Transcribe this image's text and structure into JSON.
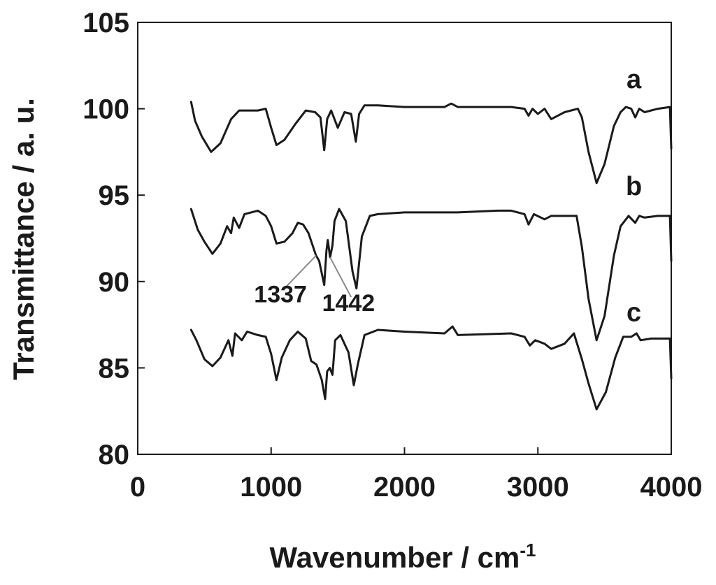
{
  "chart_data": {
    "type": "line",
    "xlabel": "Wavenumber / cm",
    "xlabel_sup": "-1",
    "ylabel": "Transmittance / a. u.",
    "xlim": [
      0,
      4000
    ],
    "ylim": [
      80,
      105
    ],
    "xticks": [
      "0",
      "1000",
      "2000",
      "3000",
      "4000"
    ],
    "yticks": [
      "80",
      "85",
      "90",
      "95",
      "100",
      "105"
    ],
    "grid": false,
    "series": [
      {
        "name": "a",
        "points": [
          [
            400,
            100.4
          ],
          [
            430,
            99.3
          ],
          [
            480,
            98.4
          ],
          [
            550,
            97.5
          ],
          [
            620,
            98.0
          ],
          [
            700,
            99.4
          ],
          [
            760,
            99.9
          ],
          [
            900,
            99.9
          ],
          [
            960,
            100.0
          ],
          [
            1000,
            98.9
          ],
          [
            1040,
            97.9
          ],
          [
            1100,
            98.2
          ],
          [
            1180,
            99.1
          ],
          [
            1260,
            99.9
          ],
          [
            1330,
            99.8
          ],
          [
            1370,
            99.5
          ],
          [
            1398,
            97.6
          ],
          [
            1420,
            99.4
          ],
          [
            1450,
            99.9
          ],
          [
            1500,
            98.9
          ],
          [
            1550,
            99.8
          ],
          [
            1600,
            99.7
          ],
          [
            1635,
            98.1
          ],
          [
            1660,
            99.7
          ],
          [
            1700,
            100.2
          ],
          [
            1800,
            100.2
          ],
          [
            2000,
            100.1
          ],
          [
            2300,
            100.1
          ],
          [
            2350,
            100.3
          ],
          [
            2400,
            100.1
          ],
          [
            2800,
            100.1
          ],
          [
            2900,
            100.0
          ],
          [
            2930,
            99.6
          ],
          [
            2960,
            100.0
          ],
          [
            3000,
            99.7
          ],
          [
            3050,
            100.0
          ],
          [
            3100,
            99.4
          ],
          [
            3200,
            99.8
          ],
          [
            3300,
            100.0
          ],
          [
            3330,
            99.5
          ],
          [
            3380,
            97.5
          ],
          [
            3440,
            95.7
          ],
          [
            3500,
            96.8
          ],
          [
            3570,
            99.0
          ],
          [
            3620,
            99.8
          ],
          [
            3660,
            100.1
          ],
          [
            3700,
            100.0
          ],
          [
            3730,
            99.5
          ],
          [
            3760,
            100.0
          ],
          [
            3800,
            99.8
          ],
          [
            3900,
            100.0
          ],
          [
            3990,
            100.1
          ],
          [
            4000,
            97.7
          ]
        ]
      },
      {
        "name": "b",
        "points": [
          [
            400,
            94.2
          ],
          [
            450,
            93.0
          ],
          [
            500,
            92.3
          ],
          [
            560,
            91.6
          ],
          [
            620,
            92.2
          ],
          [
            670,
            93.2
          ],
          [
            700,
            92.8
          ],
          [
            720,
            93.7
          ],
          [
            760,
            93.1
          ],
          [
            800,
            93.9
          ],
          [
            900,
            94.1
          ],
          [
            960,
            93.8
          ],
          [
            1000,
            93.2
          ],
          [
            1040,
            92.2
          ],
          [
            1100,
            92.3
          ],
          [
            1160,
            92.8
          ],
          [
            1200,
            93.4
          ],
          [
            1240,
            93.3
          ],
          [
            1280,
            92.8
          ],
          [
            1337,
            91.5
          ],
          [
            1360,
            91.2
          ],
          [
            1398,
            89.8
          ],
          [
            1415,
            91.8
          ],
          [
            1425,
            92.4
          ],
          [
            1442,
            91.4
          ],
          [
            1460,
            92.1
          ],
          [
            1475,
            93.5
          ],
          [
            1510,
            94.2
          ],
          [
            1560,
            93.5
          ],
          [
            1610,
            90.6
          ],
          [
            1640,
            89.6
          ],
          [
            1680,
            92.6
          ],
          [
            1740,
            93.8
          ],
          [
            1800,
            93.9
          ],
          [
            2000,
            94.0
          ],
          [
            2400,
            94.0
          ],
          [
            2700,
            94.1
          ],
          [
            2800,
            94.1
          ],
          [
            2900,
            93.9
          ],
          [
            2930,
            93.3
          ],
          [
            2970,
            93.9
          ],
          [
            3050,
            93.6
          ],
          [
            3100,
            93.8
          ],
          [
            3200,
            93.8
          ],
          [
            3290,
            93.8
          ],
          [
            3330,
            92.0
          ],
          [
            3380,
            89.0
          ],
          [
            3440,
            86.6
          ],
          [
            3500,
            88.0
          ],
          [
            3570,
            91.5
          ],
          [
            3620,
            93.2
          ],
          [
            3680,
            93.8
          ],
          [
            3730,
            93.4
          ],
          [
            3760,
            93.8
          ],
          [
            3800,
            93.7
          ],
          [
            3900,
            93.8
          ],
          [
            3990,
            93.8
          ],
          [
            4000,
            91.2
          ]
        ]
      },
      {
        "name": "c",
        "points": [
          [
            400,
            87.2
          ],
          [
            440,
            86.6
          ],
          [
            500,
            85.5
          ],
          [
            560,
            85.1
          ],
          [
            620,
            85.6
          ],
          [
            680,
            86.6
          ],
          [
            710,
            85.7
          ],
          [
            730,
            87.0
          ],
          [
            780,
            86.6
          ],
          [
            820,
            87.1
          ],
          [
            900,
            86.9
          ],
          [
            960,
            86.8
          ],
          [
            1000,
            85.8
          ],
          [
            1040,
            84.3
          ],
          [
            1080,
            85.6
          ],
          [
            1140,
            86.6
          ],
          [
            1200,
            87.1
          ],
          [
            1260,
            86.7
          ],
          [
            1300,
            85.4
          ],
          [
            1340,
            85.2
          ],
          [
            1380,
            84.3
          ],
          [
            1405,
            83.2
          ],
          [
            1420,
            84.8
          ],
          [
            1440,
            85.0
          ],
          [
            1460,
            84.6
          ],
          [
            1480,
            86.6
          ],
          [
            1520,
            86.9
          ],
          [
            1580,
            85.9
          ],
          [
            1620,
            84.0
          ],
          [
            1650,
            85.2
          ],
          [
            1700,
            86.9
          ],
          [
            1800,
            87.2
          ],
          [
            2000,
            87.1
          ],
          [
            2300,
            87.0
          ],
          [
            2360,
            87.4
          ],
          [
            2400,
            86.9
          ],
          [
            2800,
            87.0
          ],
          [
            2900,
            86.8
          ],
          [
            2940,
            86.3
          ],
          [
            2980,
            86.6
          ],
          [
            3050,
            86.4
          ],
          [
            3100,
            86.1
          ],
          [
            3200,
            86.4
          ],
          [
            3270,
            87.0
          ],
          [
            3330,
            85.5
          ],
          [
            3380,
            84.1
          ],
          [
            3440,
            82.6
          ],
          [
            3510,
            83.6
          ],
          [
            3580,
            85.6
          ],
          [
            3640,
            86.8
          ],
          [
            3700,
            86.8
          ],
          [
            3740,
            87.0
          ],
          [
            3770,
            86.6
          ],
          [
            3850,
            86.7
          ],
          [
            3990,
            86.7
          ],
          [
            4000,
            84.4
          ]
        ]
      }
    ],
    "series_labels": [
      {
        "text": "a",
        "x": 3720,
        "y": 101.2
      },
      {
        "text": "b",
        "x": 3720,
        "y": 95.0
      },
      {
        "text": "c",
        "x": 3720,
        "y": 87.7
      }
    ],
    "annotations": [
      {
        "text": "1337",
        "x_text": 1070,
        "y_text": 88.8,
        "target": [
          1337,
          91.5
        ],
        "line_from": [
          1100,
          89.6
        ]
      },
      {
        "text": "1442",
        "x_text": 1580,
        "y_text": 88.3,
        "target": [
          1442,
          91.4
        ],
        "line_from": [
          1600,
          89.1
        ]
      }
    ]
  }
}
